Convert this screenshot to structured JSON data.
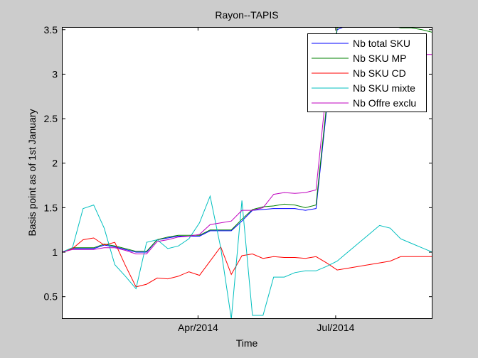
{
  "chart_data": {
    "type": "line",
    "title": "Rayon--TAPIS",
    "xlabel": "Time",
    "ylabel": "Basis point as of 1st January",
    "x_ticks": [
      "Apr/2014",
      "Jul/2014"
    ],
    "y_ticks": [
      "0.5",
      "1",
      "1.5",
      "2",
      "2.5",
      "3",
      "3.5"
    ],
    "ylim": [
      0.25,
      3.53
    ],
    "x": [
      "2014-01-01",
      "2014-01-08",
      "2014-01-15",
      "2014-01-22",
      "2014-01-29",
      "2014-02-05",
      "2014-02-12",
      "2014-02-19",
      "2014-02-26",
      "2014-03-05",
      "2014-03-12",
      "2014-03-19",
      "2014-03-26",
      "2014-04-02",
      "2014-04-09",
      "2014-04-16",
      "2014-04-23",
      "2014-04-30",
      "2014-05-07",
      "2014-05-14",
      "2014-05-21",
      "2014-05-28",
      "2014-06-04",
      "2014-06-11",
      "2014-06-18",
      "2014-06-25",
      "2014-07-02",
      "2014-07-09",
      "2014-07-16",
      "2014-07-23",
      "2014-07-30",
      "2014-08-06",
      "2014-08-13",
      "2014-08-20",
      "2014-08-27",
      "2014-09-03"
    ],
    "x_domain": [
      "2014-01-01",
      "2014-09-03"
    ],
    "grid": false,
    "legend_position": "top-right",
    "series": [
      {
        "name": "Nb total SKU",
        "color": "#0000ff",
        "values": [
          1.0,
          1.04,
          1.04,
          1.04,
          1.08,
          1.06,
          1.03,
          1.0,
          1.0,
          1.14,
          1.16,
          1.18,
          1.18,
          1.18,
          1.24,
          1.24,
          1.24,
          1.35,
          1.47,
          1.48,
          1.49,
          1.49,
          1.49,
          1.47,
          1.49,
          2.6,
          3.5,
          3.55,
          3.55,
          3.55,
          3.55,
          3.55,
          3.55,
          3.55,
          3.55,
          3.55
        ]
      },
      {
        "name": "Nb SKU MP",
        "color": "#008000",
        "values": [
          1.0,
          1.05,
          1.05,
          1.05,
          1.09,
          1.07,
          1.04,
          1.01,
          1.01,
          1.14,
          1.17,
          1.19,
          1.19,
          1.19,
          1.25,
          1.25,
          1.25,
          1.37,
          1.48,
          1.51,
          1.52,
          1.54,
          1.53,
          1.5,
          1.53,
          2.65,
          3.52,
          3.55,
          3.55,
          3.55,
          3.55,
          3.55,
          3.52,
          3.52,
          3.5,
          3.47
        ]
      },
      {
        "name": "Nb SKU CD",
        "color": "#ff0000",
        "values": [
          1.0,
          1.04,
          1.14,
          1.16,
          1.08,
          1.11,
          0.85,
          0.61,
          0.64,
          0.71,
          0.7,
          0.73,
          0.78,
          0.74,
          0.9,
          1.06,
          0.75,
          0.96,
          0.98,
          0.93,
          0.95,
          0.94,
          0.94,
          0.93,
          0.95,
          0.88,
          0.8,
          0.82,
          0.84,
          0.86,
          0.88,
          0.9,
          0.95,
          0.95,
          0.95,
          0.95
        ]
      },
      {
        "name": "Nb SKU mixte",
        "color": "#00bfbf",
        "values": [
          1.0,
          1.05,
          1.49,
          1.53,
          1.27,
          0.86,
          0.73,
          0.59,
          1.11,
          1.14,
          1.04,
          1.07,
          1.15,
          1.33,
          1.63,
          1.05,
          0.25,
          1.58,
          0.29,
          0.29,
          0.72,
          0.72,
          0.77,
          0.79,
          0.79,
          0.84,
          0.9,
          1.0,
          1.1,
          1.2,
          1.3,
          1.27,
          1.15,
          1.1,
          1.05,
          1.0
        ]
      },
      {
        "name": "Nb Offre exclu",
        "color": "#bf00bf",
        "values": [
          1.0,
          1.03,
          1.03,
          1.03,
          1.05,
          1.05,
          1.02,
          0.98,
          0.98,
          1.12,
          1.14,
          1.17,
          1.18,
          1.2,
          1.31,
          1.33,
          1.35,
          1.47,
          1.47,
          1.5,
          1.65,
          1.67,
          1.66,
          1.67,
          1.7,
          2.85,
          3.22,
          3.22,
          3.22,
          3.22,
          3.22,
          3.22,
          3.22,
          3.22,
          3.22,
          3.22
        ]
      }
    ]
  }
}
